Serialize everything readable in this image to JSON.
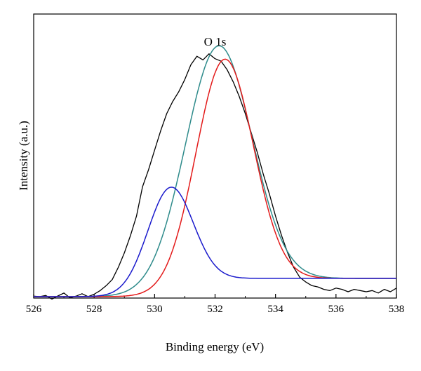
{
  "chart_data": {
    "type": "line",
    "title": "",
    "xlabel": "Binding energy (eV)",
    "ylabel": "Intensity (a.u.)",
    "xlim": [
      526,
      538
    ],
    "ylim": [
      0,
      1
    ],
    "x_ticks": [
      "526",
      "528",
      "530",
      "532",
      "534",
      "536",
      "538"
    ],
    "y_ticks_labeled": false,
    "grid": false,
    "legend": "none",
    "annotations": [
      {
        "text": "O  1s",
        "x": 532.0,
        "y": 1.0
      }
    ],
    "colors": {
      "raw": "#000000",
      "envelope": "#2e8b8b",
      "component_high": "#e31a1a",
      "component_low": "#1a1acc"
    },
    "series": [
      {
        "role": "raw-data",
        "x": [
          526.0,
          526.2,
          526.4,
          526.6,
          526.8,
          527.0,
          527.2,
          527.4,
          527.6,
          527.8,
          528.0,
          528.2,
          528.4,
          528.6,
          528.8,
          529.0,
          529.2,
          529.4,
          529.6,
          529.8,
          530.0,
          530.2,
          530.4,
          530.6,
          530.8,
          531.0,
          531.2,
          531.4,
          531.6,
          531.8,
          532.0,
          532.2,
          532.4,
          532.6,
          532.8,
          533.0,
          533.2,
          533.4,
          533.6,
          533.8,
          534.0,
          534.2,
          534.4,
          534.6,
          534.8,
          535.0,
          535.2,
          535.4,
          535.6,
          535.8,
          536.0,
          536.2,
          536.4,
          536.6,
          536.8,
          537.0,
          537.2,
          537.4,
          537.6,
          537.8,
          538.0
        ],
        "y": [
          0.002,
          0.0,
          0.005,
          -0.01,
          0.003,
          0.015,
          -0.005,
          0.002,
          0.012,
          0.0,
          0.01,
          0.025,
          0.045,
          0.07,
          0.12,
          0.18,
          0.25,
          0.33,
          0.45,
          0.52,
          0.6,
          0.68,
          0.75,
          0.8,
          0.84,
          0.89,
          0.95,
          0.985,
          0.97,
          0.995,
          0.975,
          0.965,
          0.93,
          0.88,
          0.82,
          0.75,
          0.67,
          0.59,
          0.5,
          0.42,
          0.33,
          0.25,
          0.18,
          0.12,
          0.08,
          0.06,
          0.045,
          0.04,
          0.03,
          0.025,
          0.035,
          0.03,
          0.02,
          0.03,
          0.025,
          0.02,
          0.025,
          0.015,
          0.03,
          0.02,
          0.035
        ]
      },
      {
        "role": "envelope-fit",
        "center": 532.1,
        "amplitude": 0.99,
        "width": 1.1,
        "baseline_low": 0.0,
        "baseline_high": 0.075
      },
      {
        "role": "component-high",
        "center": 532.3,
        "amplitude": 0.935,
        "width": 0.95,
        "baseline_low": 0.0,
        "baseline_high": 0.075
      },
      {
        "role": "component-low",
        "center": 530.5,
        "amplitude": 0.41,
        "width": 0.75,
        "baseline_low": 0.0,
        "baseline_high": 0.075
      }
    ]
  }
}
